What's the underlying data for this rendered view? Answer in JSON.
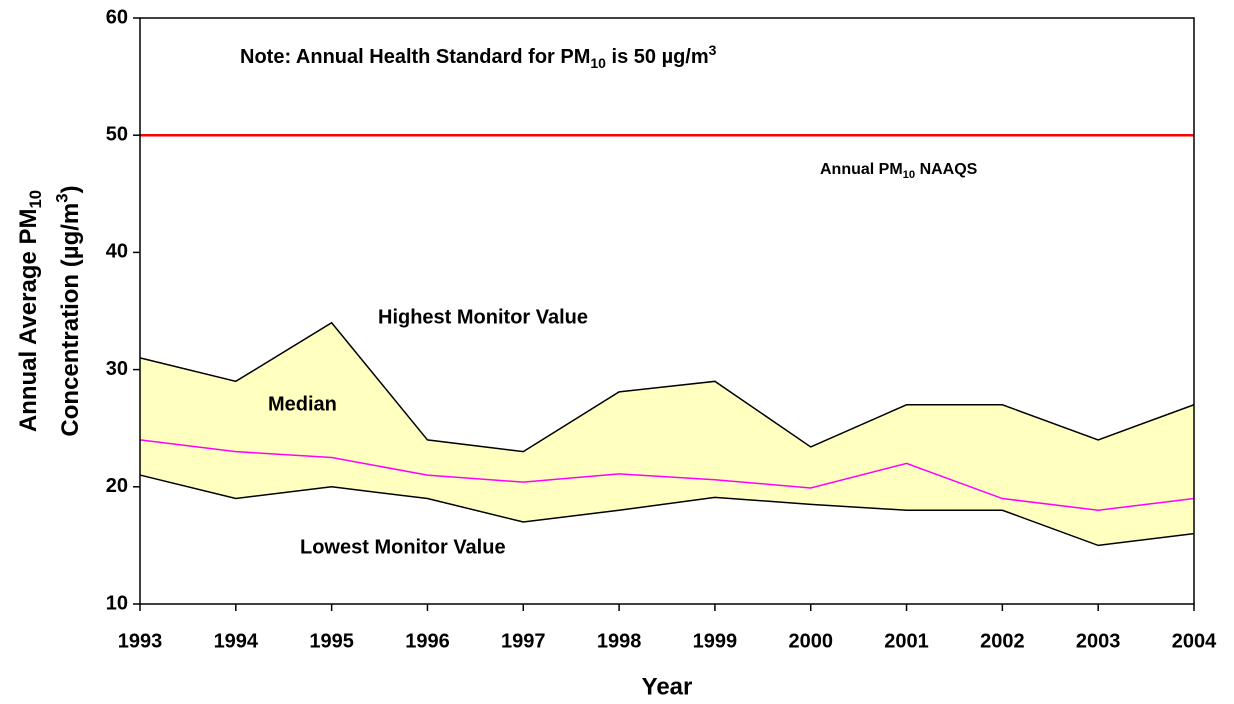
{
  "chart_data": {
    "type": "line",
    "note": [
      "Note: Annual Health Standard for PM",
      "10",
      " is 50 µg/m",
      "3"
    ],
    "x_label": "Year",
    "y_label": [
      [
        "Annual Average PM",
        "10"
      ],
      [
        "Concentration (µg/m",
        "3",
        ")"
      ]
    ],
    "categories": [
      "1993",
      "1994",
      "1995",
      "1996",
      "1997",
      "1998",
      "1999",
      "2000",
      "2001",
      "2002",
      "2003",
      "2004"
    ],
    "series": [
      {
        "name": "Highest Monitor Value",
        "color": "#000000",
        "values": [
          31,
          29,
          34,
          24,
          23,
          28.1,
          29,
          23.4,
          27,
          27,
          24,
          27
        ]
      },
      {
        "name": "Median",
        "color": "#ff00ff",
        "values": [
          24,
          23,
          22.5,
          21,
          20.4,
          21.1,
          20.6,
          19.9,
          22,
          19,
          18,
          19
        ]
      },
      {
        "name": "Lowest Monitor Value",
        "color": "#000000",
        "values": [
          21,
          19,
          20,
          19,
          17,
          18,
          19.1,
          18.5,
          18,
          18,
          15,
          16
        ]
      }
    ],
    "fill_color": "#ffffc0",
    "reference_line": {
      "value": 50,
      "color": "#ff0000",
      "label": [
        "Annual PM",
        "10",
        " NAAQS"
      ]
    },
    "ylim": [
      10,
      60
    ],
    "yticks": [
      10,
      20,
      30,
      40,
      50,
      60
    ]
  }
}
